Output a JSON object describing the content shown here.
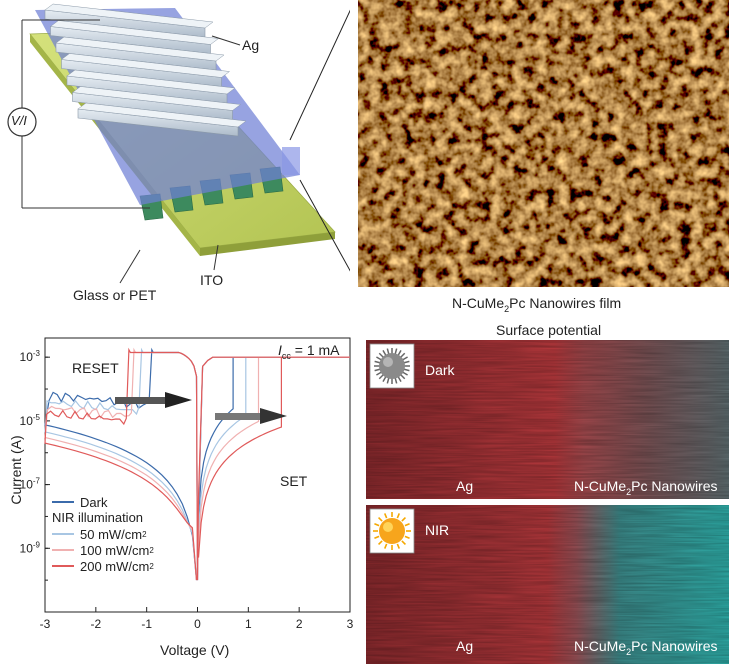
{
  "device": {
    "ag_label": "Ag",
    "vi_label": "V/I",
    "ito_label": "ITO",
    "substrate_label": "Glass or PET"
  },
  "afm": {
    "caption_prefix": "N-CuMe",
    "caption_sub": "2",
    "caption_suffix": "Pc Nanowires film"
  },
  "chart_data": {
    "type": "line",
    "xlabel": "Voltage (V)",
    "ylabel": "Current (A)",
    "xlim": [
      -3,
      3
    ],
    "ylim_log": [
      1e-11,
      0.004
    ],
    "x_ticks": [
      -3,
      -2,
      -1,
      0,
      1,
      2,
      3
    ],
    "y_tick_values": [
      0.001,
      1e-05,
      1e-07,
      1e-09
    ],
    "y_tick_labels": [
      {
        "base": "10",
        "exp": "-3"
      },
      {
        "base": "10",
        "exp": "-5"
      },
      {
        "base": "10",
        "exp": "-7"
      },
      {
        "base": "10",
        "exp": "-9"
      }
    ],
    "annotations": {
      "reset": "RESET",
      "set": "SET",
      "icc_symbol": "I",
      "icc_sub": "cc",
      "icc_value": " = 1 mA"
    },
    "legend_header": "NIR illumination",
    "series": [
      {
        "name": "Dark",
        "unit": "",
        "color": "#3b6bab",
        "set_v": 0.7,
        "reset_v": -0.9,
        "low_i": 3e-05
      },
      {
        "name": "50 mW/cm",
        "unit": "2",
        "color": "#a8c6e3",
        "set_v": 0.95,
        "reset_v": -1.1,
        "low_i": 1.8e-05
      },
      {
        "name": "100 mW/cm",
        "unit": "2",
        "color": "#f0b1b1",
        "set_v": 1.2,
        "reset_v": -1.25,
        "low_i": 1.2e-05
      },
      {
        "name": "200 mW/cm",
        "unit": "2",
        "color": "#e05a5a",
        "set_v": 1.65,
        "reset_v": -1.35,
        "low_i": 8e-06
      }
    ]
  },
  "kpfm": {
    "title": "Surface potential",
    "panels": [
      {
        "label": "Dark",
        "left": "Ag",
        "right_prefix": "N-CuMe",
        "right_sub": "2",
        "right_suffix": "Pc Nanowires",
        "right_color": "#6c7478"
      },
      {
        "label": "NIR",
        "left": "Ag",
        "right_prefix": "N-CuMe",
        "right_sub": "2",
        "right_suffix": "Pc Nanowires",
        "right_color": "#38b0ac"
      }
    ]
  },
  "colors": {
    "ag": "#c8d3de",
    "ito": "#3d8a5e",
    "substrate": "#c9d96a",
    "film": "#6f80d6",
    "afm_dark": "#5a2c00",
    "afm_light": "#f2c45a",
    "kpfm_red": "#b23a3e"
  }
}
